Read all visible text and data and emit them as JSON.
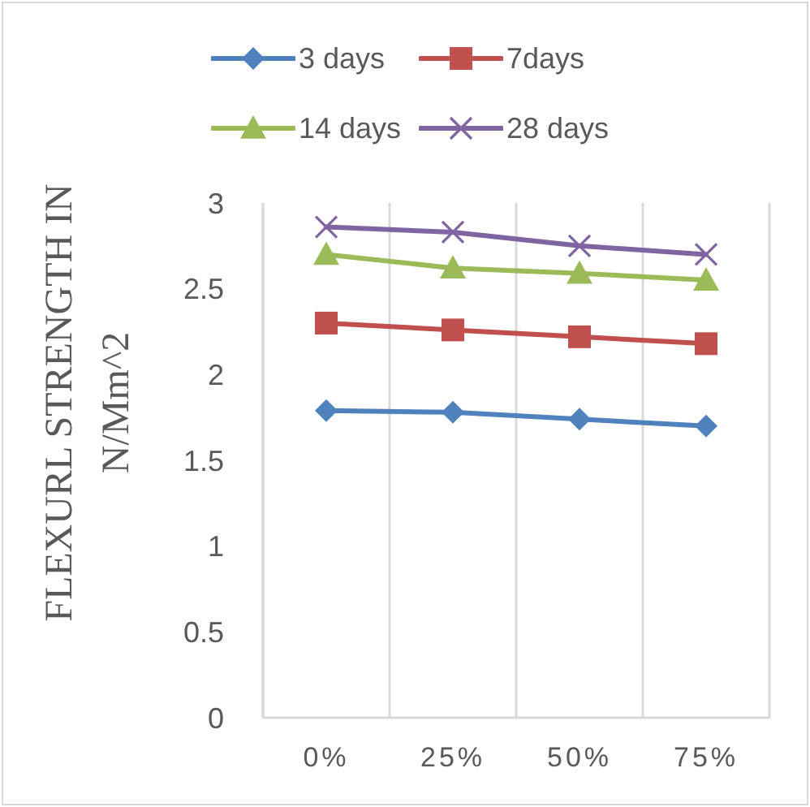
{
  "chart_data": {
    "type": "line",
    "ylabel": "FLEXURL STRENGTH IN N/Mm^2",
    "categories": [
      "0%",
      "25%",
      "50%",
      "75%"
    ],
    "series": [
      {
        "name": "3 days",
        "color": "#4f81bd",
        "marker": "diamond",
        "values": [
          1.79,
          1.78,
          1.74,
          1.7
        ]
      },
      {
        "name": "7days",
        "color": "#c0504d",
        "marker": "square",
        "values": [
          2.3,
          2.26,
          2.22,
          2.18
        ]
      },
      {
        "name": "14 days",
        "color": "#9bbb59",
        "marker": "triangle",
        "values": [
          2.7,
          2.62,
          2.59,
          2.55
        ]
      },
      {
        "name": "28 days",
        "color": "#8064a2",
        "marker": "cross",
        "values": [
          2.86,
          2.83,
          2.75,
          2.7
        ]
      }
    ],
    "ylim": [
      0,
      3
    ],
    "yticks": [
      0,
      0.5,
      1,
      1.5,
      2,
      2.5,
      3
    ],
    "grid": "x",
    "legend": "top",
    "line_style": "solid"
  }
}
